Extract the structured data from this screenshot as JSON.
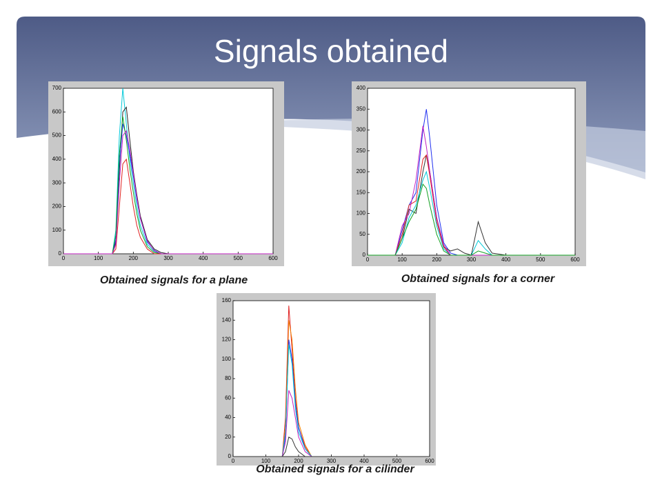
{
  "title": "Signals obtained",
  "chart_data": [
    {
      "type": "line",
      "title": "Obtained signals for a plane",
      "x": [
        0,
        100,
        140,
        150,
        160,
        170,
        180,
        190,
        200,
        210,
        220,
        240,
        260,
        280,
        300,
        400,
        500,
        600
      ],
      "series": [
        {
          "color": "#00c8d8",
          "values": [
            0,
            0,
            0,
            100,
            500,
            700,
            550,
            400,
            300,
            200,
            120,
            40,
            10,
            0,
            0,
            0,
            0,
            0
          ]
        },
        {
          "color": "#222222",
          "values": [
            0,
            0,
            0,
            50,
            350,
            600,
            620,
            480,
            350,
            250,
            160,
            60,
            20,
            5,
            0,
            0,
            0,
            0
          ]
        },
        {
          "color": "#1f2ff0",
          "values": [
            0,
            0,
            0,
            60,
            380,
            550,
            500,
            420,
            330,
            230,
            150,
            50,
            15,
            0,
            0,
            0,
            0,
            0
          ]
        },
        {
          "color": "#10a020",
          "values": [
            0,
            0,
            0,
            80,
            420,
            580,
            480,
            360,
            260,
            170,
            100,
            30,
            5,
            0,
            0,
            0,
            0,
            0
          ]
        },
        {
          "color": "#e02020",
          "values": [
            0,
            0,
            0,
            20,
            200,
            380,
            400,
            300,
            200,
            120,
            70,
            20,
            0,
            0,
            0,
            0,
            0,
            0
          ]
        },
        {
          "color": "#c020c0",
          "values": [
            0,
            0,
            0,
            40,
            300,
            500,
            520,
            440,
            340,
            240,
            150,
            55,
            12,
            0,
            0,
            0,
            0,
            0
          ]
        }
      ],
      "xlim": [
        0,
        600
      ],
      "ylim": [
        0,
        700
      ],
      "xticks": [
        0,
        100,
        200,
        300,
        400,
        500,
        600
      ],
      "yticks": [
        0,
        100,
        200,
        300,
        400,
        500,
        600,
        700
      ]
    },
    {
      "type": "line",
      "title": "Obtained signals for a corner",
      "x": [
        0,
        80,
        100,
        120,
        140,
        160,
        170,
        180,
        200,
        220,
        240,
        260,
        280,
        300,
        320,
        340,
        360,
        400,
        500,
        600
      ],
      "series": [
        {
          "color": "#1f2ff0",
          "values": [
            0,
            0,
            60,
            120,
            150,
            300,
            350,
            280,
            120,
            30,
            5,
            0,
            0,
            0,
            0,
            0,
            0,
            0,
            0,
            0
          ]
        },
        {
          "color": "#333333",
          "values": [
            0,
            0,
            40,
            110,
            100,
            200,
            240,
            200,
            90,
            20,
            10,
            15,
            5,
            0,
            80,
            30,
            5,
            0,
            0,
            0
          ]
        },
        {
          "color": "#00c8d8",
          "values": [
            0,
            0,
            30,
            90,
            120,
            180,
            200,
            160,
            70,
            15,
            0,
            0,
            0,
            0,
            35,
            15,
            0,
            0,
            0,
            0
          ]
        },
        {
          "color": "#e02020",
          "values": [
            0,
            0,
            50,
            120,
            130,
            230,
            240,
            190,
            80,
            20,
            0,
            0,
            0,
            0,
            0,
            0,
            0,
            0,
            0,
            0
          ]
        },
        {
          "color": "#c020c0",
          "values": [
            0,
            0,
            70,
            100,
            180,
            310,
            260,
            200,
            90,
            25,
            0,
            0,
            0,
            0,
            0,
            0,
            0,
            0,
            0,
            0
          ]
        },
        {
          "color": "#10a020",
          "values": [
            0,
            0,
            40,
            80,
            110,
            170,
            160,
            120,
            50,
            10,
            0,
            0,
            0,
            0,
            10,
            5,
            0,
            0,
            0,
            0
          ]
        }
      ],
      "xlim": [
        0,
        600
      ],
      "ylim": [
        0,
        400
      ],
      "xticks": [
        0,
        100,
        200,
        300,
        400,
        500,
        600
      ],
      "yticks": [
        0,
        50,
        100,
        150,
        200,
        250,
        300,
        350,
        400
      ]
    },
    {
      "type": "line",
      "title": "Obtained signals for a cilinder",
      "x": [
        0,
        100,
        150,
        160,
        170,
        180,
        190,
        200,
        220,
        240,
        260,
        300,
        400,
        500,
        600
      ],
      "series": [
        {
          "color": "#e02020",
          "values": [
            0,
            0,
            0,
            40,
            155,
            110,
            60,
            30,
            10,
            0,
            0,
            0,
            0,
            0,
            0
          ]
        },
        {
          "color": "#f08000",
          "values": [
            0,
            0,
            0,
            30,
            140,
            120,
            70,
            35,
            12,
            0,
            0,
            0,
            0,
            0,
            0
          ]
        },
        {
          "color": "#1f2ff0",
          "values": [
            0,
            0,
            0,
            20,
            120,
            100,
            55,
            30,
            8,
            0,
            0,
            0,
            0,
            0,
            0
          ]
        },
        {
          "color": "#00c8d8",
          "values": [
            0,
            0,
            0,
            25,
            115,
            95,
            50,
            25,
            8,
            0,
            0,
            0,
            0,
            0,
            0
          ]
        },
        {
          "color": "#c020c0",
          "values": [
            0,
            0,
            0,
            15,
            68,
            60,
            40,
            20,
            5,
            0,
            0,
            0,
            0,
            0,
            0
          ]
        },
        {
          "color": "#333333",
          "values": [
            0,
            0,
            0,
            5,
            20,
            18,
            10,
            5,
            0,
            0,
            0,
            0,
            0,
            0,
            0
          ]
        }
      ],
      "xlim": [
        0,
        600
      ],
      "ylim": [
        0,
        160
      ],
      "xticks": [
        0,
        100,
        200,
        300,
        400,
        500,
        600
      ],
      "yticks": [
        0,
        20,
        40,
        60,
        80,
        100,
        120,
        140,
        160
      ]
    }
  ]
}
